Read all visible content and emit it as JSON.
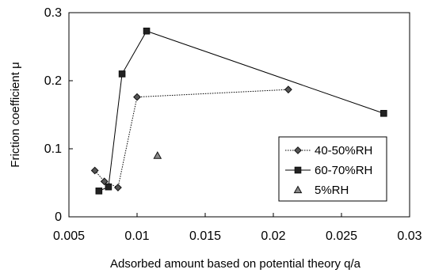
{
  "chart_data": {
    "type": "scatter",
    "xlabel": "Adsorbed amount based on potential theory q/a",
    "ylabel": "Friction coefficient μ",
    "xlim": [
      0.005,
      0.03
    ],
    "ylim": [
      0,
      0.3
    ],
    "xticks": [
      "0.005",
      "0.01",
      "0.015",
      "0.02",
      "0.025",
      "0.03"
    ],
    "yticks": [
      "0",
      "0.1",
      "0.2",
      "0.3"
    ],
    "grid": false,
    "legend_position": "bottom-right",
    "series": [
      {
        "name": "40-50%RH",
        "marker": "diamond",
        "line": "dotted",
        "color": "#555555",
        "points": [
          [
            0.0069,
            0.068
          ],
          [
            0.0076,
            0.052
          ],
          [
            0.0086,
            0.043
          ],
          [
            0.01,
            0.176
          ],
          [
            0.0211,
            0.187
          ]
        ]
      },
      {
        "name": "60-70%RH",
        "marker": "square",
        "line": "solid",
        "color": "#222222",
        "points": [
          [
            0.0072,
            0.038
          ],
          [
            0.0079,
            0.044
          ],
          [
            0.0089,
            0.21
          ],
          [
            0.0107,
            0.273
          ],
          [
            0.0281,
            0.152
          ]
        ]
      },
      {
        "name": "5%RH",
        "marker": "triangle",
        "line": "none",
        "color": "#888888",
        "points": [
          [
            0.0115,
            0.09
          ]
        ]
      }
    ]
  }
}
